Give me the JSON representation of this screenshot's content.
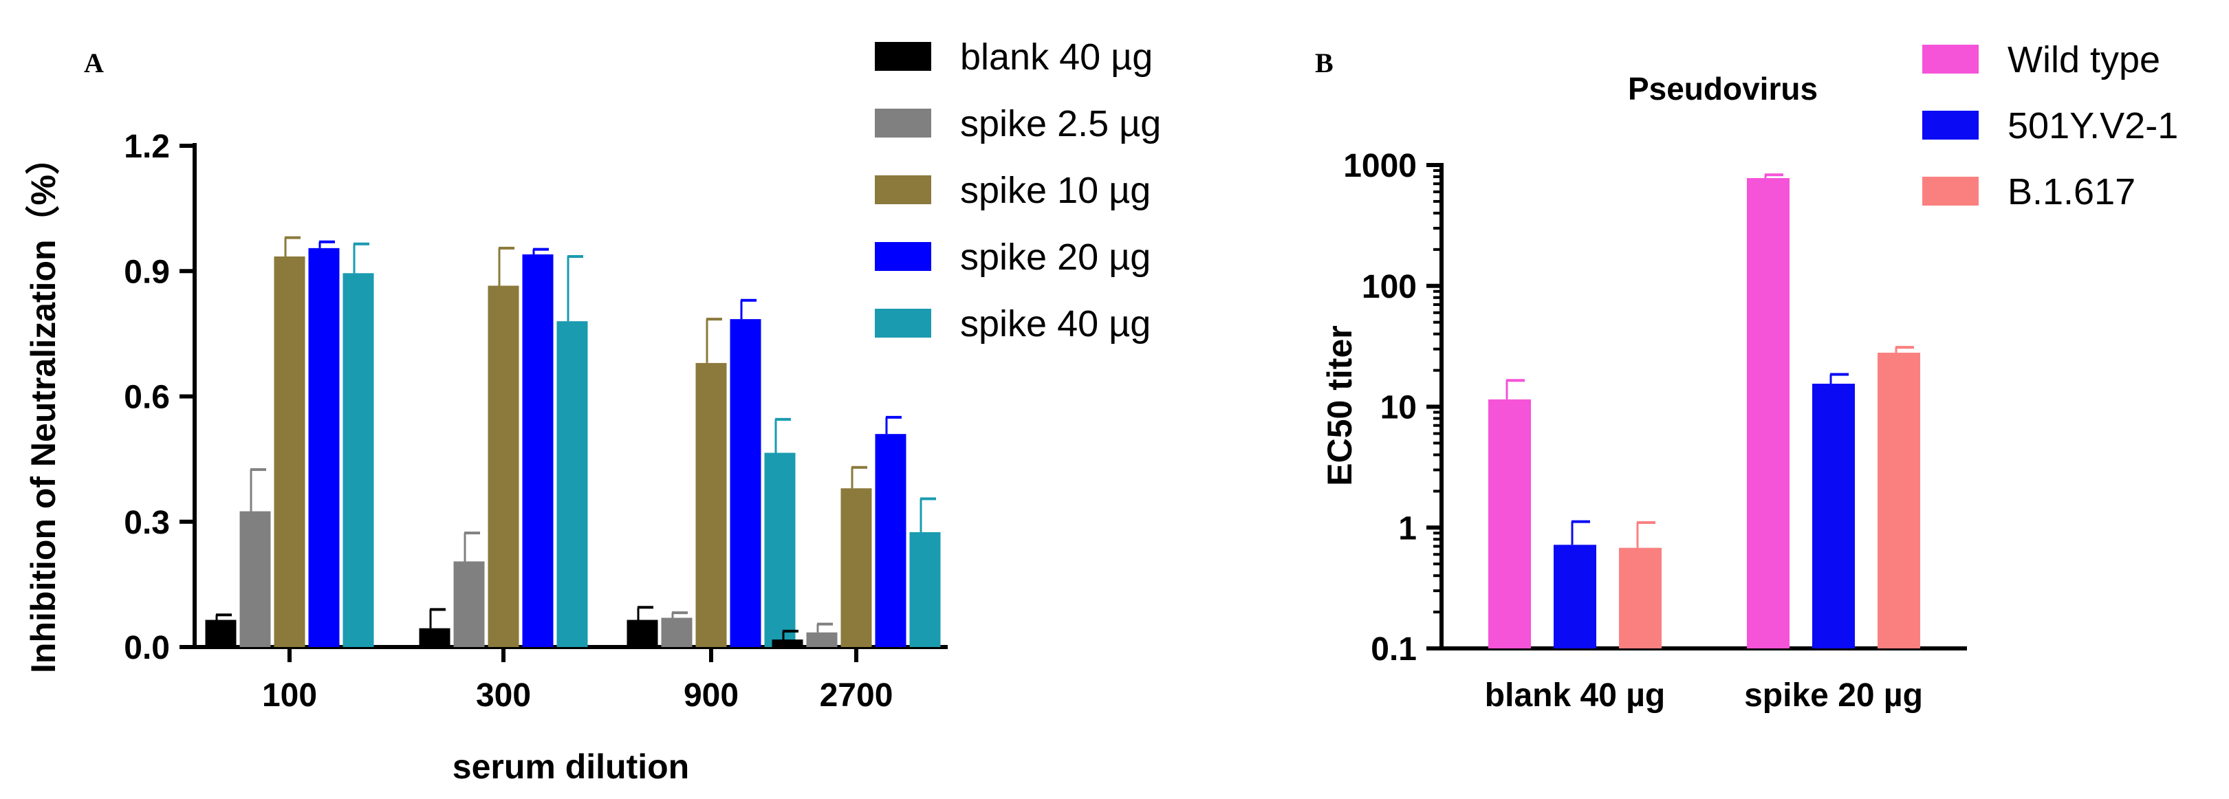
{
  "panels": {
    "a": "A",
    "b": "B"
  },
  "chart_data": [
    {
      "type": "bar",
      "panel": "A",
      "title": "",
      "xlabel": "serum dilution",
      "ylabel": "Inhibition of Neutralization（%）",
      "categories": [
        "100",
        "300",
        "900",
        "2700"
      ],
      "ylim": [
        0,
        1.2
      ],
      "yticks": [
        "0.0",
        "0.3",
        "0.6",
        "0.9",
        "1.2"
      ],
      "grid": false,
      "legend_position": "top-right",
      "series": [
        {
          "name": "blank 40 µg",
          "color": "#000000",
          "values": [
            0.065,
            0.045,
            0.065,
            0.018
          ],
          "errors": [
            0.012,
            0.045,
            0.03,
            0.02
          ]
        },
        {
          "name": "spike 2.5 µg",
          "color": "#808080",
          "values": [
            0.325,
            0.205,
            0.07,
            0.035
          ],
          "errors": [
            0.1,
            0.068,
            0.012,
            0.02
          ]
        },
        {
          "name": "spike 10 µg",
          "color": "#8b7a3b",
          "values": [
            0.935,
            0.865,
            0.68,
            0.38
          ],
          "errors": [
            0.045,
            0.09,
            0.105,
            0.05
          ]
        },
        {
          "name": "spike 20 µg",
          "color": "#0000ff",
          "values": [
            0.955,
            0.94,
            0.785,
            0.51
          ],
          "errors": [
            0.015,
            0.012,
            0.045,
            0.04
          ]
        },
        {
          "name": "spike 40 µg",
          "color": "#1a9bb0",
          "values": [
            0.895,
            0.78,
            0.465,
            0.275
          ],
          "errors": [
            0.07,
            0.155,
            0.08,
            0.08
          ]
        }
      ]
    },
    {
      "type": "bar",
      "panel": "B",
      "title": "Pseudovirus",
      "xlabel": "",
      "ylabel": "EC50 titer",
      "yscale": "log",
      "ylim": [
        0.1,
        1000
      ],
      "yticks": [
        "0.1",
        "1",
        "10",
        "100",
        "1000"
      ],
      "categories": [
        "blank 40 µg",
        "spike 20 µg"
      ],
      "grid": false,
      "legend_position": "top-right",
      "series": [
        {
          "name": "Wild type",
          "color": "#f553d8",
          "values": [
            11.5,
            780
          ],
          "errors": [
            5,
            50
          ]
        },
        {
          "name": "501Y.V2-1",
          "color": "#0a0af5",
          "values": [
            0.72,
            15.5
          ],
          "errors": [
            0.4,
            3
          ]
        },
        {
          "name": "B.1.617",
          "color": "#fa8080",
          "values": [
            0.68,
            28
          ],
          "errors": [
            0.42,
            3
          ]
        }
      ]
    }
  ]
}
